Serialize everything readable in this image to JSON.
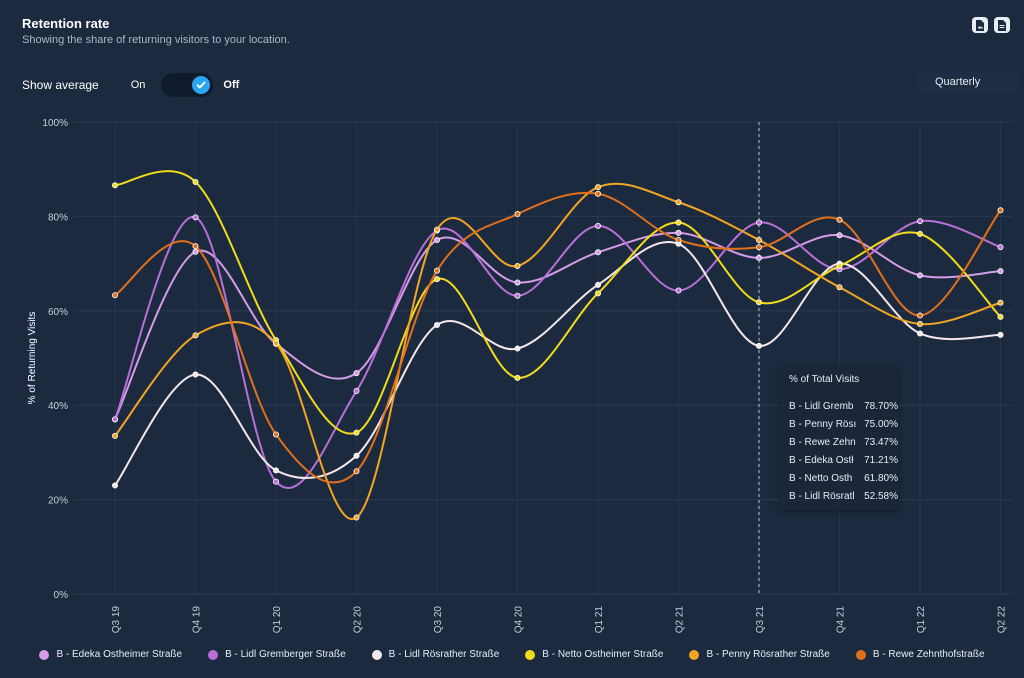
{
  "header": {
    "title": "Retention rate",
    "subtitle": "Showing the share of returning visitors to your location."
  },
  "export": {
    "icons": [
      "png-export-icon",
      "pdf-export-icon"
    ]
  },
  "average_toggle": {
    "label": "Show average",
    "on_label": "On",
    "off_label": "Off",
    "state": "off"
  },
  "period_select": {
    "value": "Quarterly"
  },
  "chart_data": {
    "type": "line",
    "ylabel": "% of Returning Visits",
    "xlabel": "",
    "categories": [
      "Q3 19",
      "Q4 19",
      "Q1 20",
      "Q2 20",
      "Q3 20",
      "Q4 20",
      "Q1 21",
      "Q2 21",
      "Q3 21",
      "Q4 21",
      "Q1 22",
      "Q2 22"
    ],
    "ylim": [
      0,
      100
    ],
    "yticks": [
      0,
      20,
      40,
      60,
      80,
      100
    ],
    "ytick_labels": [
      "0%",
      "20%",
      "40%",
      "60%",
      "80%",
      "100%"
    ],
    "grid": true,
    "legend_position": "bottom",
    "series": [
      {
        "name": "B - Edeka Ostheimer Straße",
        "color": "#d59be8",
        "values": [
          37,
          72.5,
          53,
          46.8,
          75,
          66,
          72.4,
          76.5,
          71.21,
          76,
          67.5,
          68.4
        ]
      },
      {
        "name": "B - Lidl Gremberger Straße",
        "color": "#b96fd8",
        "values": [
          37,
          79.8,
          23.8,
          43,
          77,
          63.2,
          78,
          64.3,
          78.7,
          68.8,
          79,
          73.5
        ]
      },
      {
        "name": "B - Lidl Rösrather Straße",
        "color": "#f4e7ea",
        "values": [
          23,
          46.5,
          26.2,
          29.3,
          57,
          52,
          65.5,
          74.2,
          52.58,
          70,
          55.2,
          54.9
        ]
      },
      {
        "name": "B - Netto Ostheimer Straße",
        "color": "#f2db1c",
        "values": [
          86.6,
          87.3,
          53.8,
          34.2,
          66.7,
          45.8,
          63.7,
          78.7,
          61.8,
          69.5,
          76.3,
          58.7
        ]
      },
      {
        "name": "B - Penny Rösrather Straße",
        "color": "#f2a523",
        "values": [
          33.5,
          54.8,
          53.1,
          16.2,
          77.2,
          69.5,
          86.2,
          83,
          75,
          65,
          57.2,
          61.7
        ]
      },
      {
        "name": "B - Rewe Zehnthofstraße",
        "color": "#e2701b",
        "values": [
          63.3,
          73.7,
          33.8,
          26,
          68.5,
          80.5,
          84.8,
          75,
          73.47,
          79.3,
          59,
          81.3
        ]
      }
    ],
    "highlight_category": "Q3 21"
  },
  "tooltip": {
    "title": "% of Total Visits",
    "rows": [
      {
        "name": "B - Lidl Gremb",
        "value": "78.70%"
      },
      {
        "name": "B - Penny Rösı",
        "value": "75.00%"
      },
      {
        "name": "B - Rewe Zehn",
        "value": "73.47%"
      },
      {
        "name": "B - Edeka Ostł",
        "value": "71.21%"
      },
      {
        "name": "B - Netto Osth",
        "value": "61.80%"
      },
      {
        "name": "B - Lidl Rösratl",
        "value": "52.58%"
      }
    ]
  }
}
